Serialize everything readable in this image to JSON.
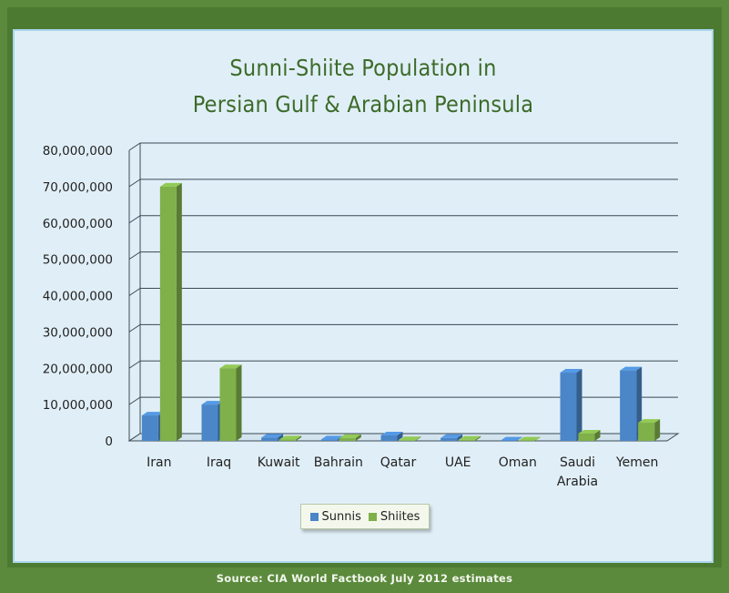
{
  "chart_data": {
    "type": "bar",
    "title_lines": [
      "Sunni-Shiite Population in",
      "Persian Gulf & Arabian Peninsula"
    ],
    "categories": [
      "Iran",
      "Iraq",
      "Kuwait",
      "Bahrain",
      "Qatar",
      "UAE",
      "Oman",
      "Saudi Arabia",
      "Yemen"
    ],
    "category_lines": [
      [
        "Iran"
      ],
      [
        "Iraq"
      ],
      [
        "Kuwait"
      ],
      [
        "Bahrain"
      ],
      [
        "Qatar"
      ],
      [
        "UAE"
      ],
      [
        "Oman"
      ],
      [
        "Saudi",
        "Arabia"
      ],
      [
        "Yemen"
      ]
    ],
    "series": [
      {
        "name": "Sunnis",
        "color": "#4a86c8",
        "values": [
          7000000,
          10000000,
          900000,
          400000,
          1500000,
          800000,
          100000,
          18800000,
          19400000
        ]
      },
      {
        "name": "Shiites",
        "color": "#7fb04a",
        "values": [
          70000000,
          20000000,
          400000,
          800000,
          200000,
          300000,
          100000,
          2000000,
          5000000
        ]
      }
    ],
    "ylim": [
      0,
      80000000
    ],
    "yticks": [
      "0",
      "10,000,000",
      "20,000,000",
      "30,000,000",
      "40,000,000",
      "50,000,000",
      "60,000,000",
      "70,000,000",
      "80,000,000"
    ],
    "legend_position": "bottom",
    "grid": true,
    "style": "3d-clustered-column"
  },
  "source": "Source: CIA World Factbook July 2012 estimates"
}
